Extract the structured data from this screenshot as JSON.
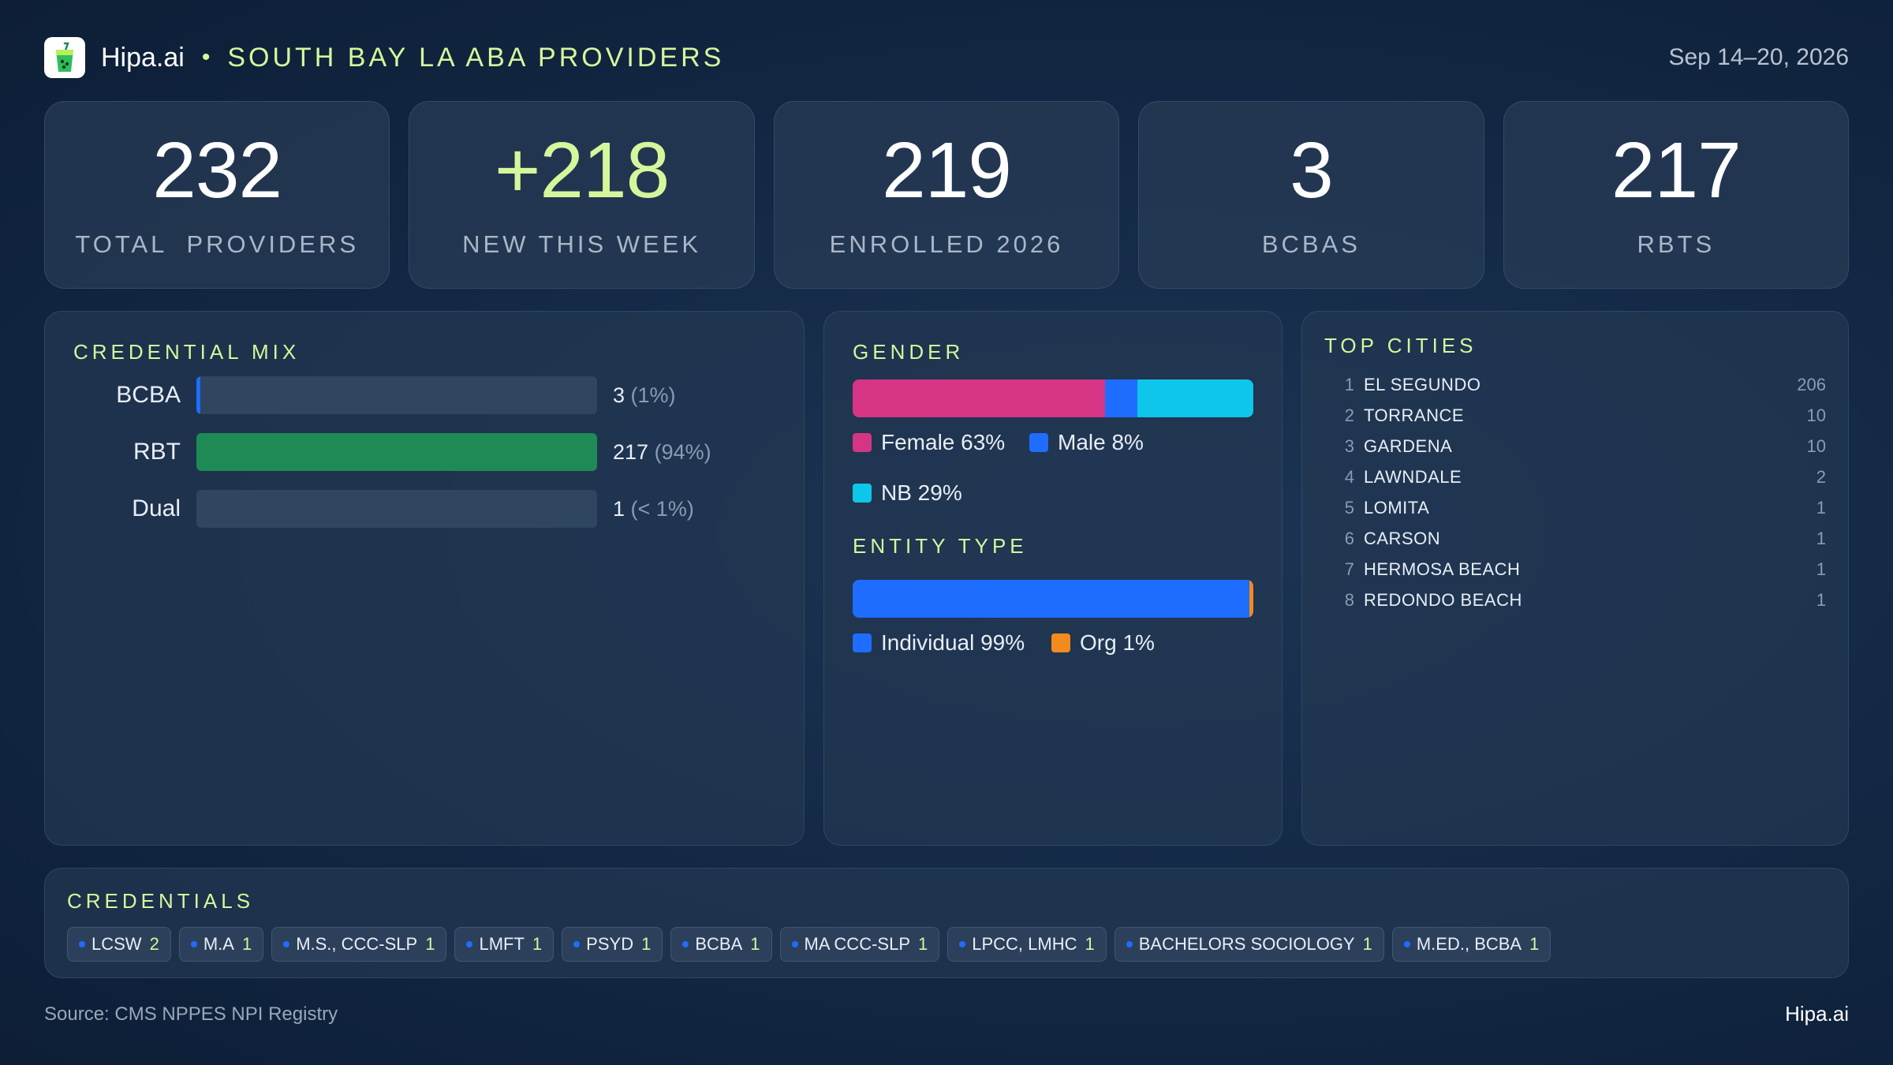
{
  "header": {
    "brand": "Hipa.ai",
    "separator": "•",
    "title": "SOUTH BAY LA ABA PROVIDERS",
    "date_range": "Sep 14–20, 2026"
  },
  "stats": [
    {
      "value": "232",
      "label": "TOTAL  PROVIDERS"
    },
    {
      "value": "+218",
      "label": "NEW THIS WEEK"
    },
    {
      "value": "219",
      "label": "ENROLLED 2026"
    },
    {
      "value": "3",
      "label": "BCBAS"
    },
    {
      "value": "217",
      "label": "RBTS"
    }
  ],
  "credential_mix": {
    "title": "CREDENTIAL MIX",
    "rows": [
      {
        "label": "BCBA",
        "count": "3",
        "pct": "(1%)",
        "fraction": 0.01,
        "color": "#1e6dff"
      },
      {
        "label": "RBT",
        "count": "217",
        "pct": "(94%)",
        "fraction": 1.0,
        "color": "#1e8a55"
      },
      {
        "label": "Dual",
        "count": "1",
        "pct": "(< 1%)",
        "fraction": 0.0,
        "color": "#5a6b82"
      }
    ]
  },
  "gender": {
    "title": "GENDER",
    "segments": [
      {
        "label": "Female 63%",
        "fraction": 0.63,
        "color": "#d63585"
      },
      {
        "label": "Male 8%",
        "fraction": 0.08,
        "color": "#1e6dff"
      },
      {
        "label": "NB 29%",
        "fraction": 0.29,
        "color": "#0ec5ea"
      }
    ]
  },
  "entity_type": {
    "title": "ENTITY TYPE",
    "segments": [
      {
        "label": "Individual 99%",
        "fraction": 0.99,
        "color": "#1e6dff"
      },
      {
        "label": "Org 1%",
        "fraction": 0.01,
        "color": "#f28a1e"
      }
    ]
  },
  "top_cities": {
    "title": "TOP CITIES",
    "rows": [
      {
        "rank": "1",
        "name": "EL SEGUNDO",
        "count": "206"
      },
      {
        "rank": "2",
        "name": "TORRANCE",
        "count": "10"
      },
      {
        "rank": "3",
        "name": "GARDENA",
        "count": "10"
      },
      {
        "rank": "4",
        "name": "LAWNDALE",
        "count": "2"
      },
      {
        "rank": "5",
        "name": "LOMITA",
        "count": "1"
      },
      {
        "rank": "6",
        "name": "CARSON",
        "count": "1"
      },
      {
        "rank": "7",
        "name": "HERMOSA BEACH",
        "count": "1"
      },
      {
        "rank": "8",
        "name": "REDONDO BEACH",
        "count": "1"
      }
    ]
  },
  "credentials": {
    "title": "CREDENTIALS",
    "chips": [
      {
        "name": "LCSW",
        "count": "2"
      },
      {
        "name": "M.A",
        "count": "1"
      },
      {
        "name": "M.S., CCC-SLP",
        "count": "1"
      },
      {
        "name": "LMFT",
        "count": "1"
      },
      {
        "name": "PSYD",
        "count": "1"
      },
      {
        "name": "BCBA",
        "count": "1"
      },
      {
        "name": "MA CCC-SLP",
        "count": "1"
      },
      {
        "name": "LPCC, LMHC",
        "count": "1"
      },
      {
        "name": "BACHELORS SOCIOLOGY",
        "count": "1"
      },
      {
        "name": "M.ED., BCBA",
        "count": "1"
      }
    ]
  },
  "footer": {
    "source": "Source: CMS NPPES NPI Registry",
    "brand": "Hipa.ai"
  },
  "icons": {
    "logo": "drink-cup-icon"
  }
}
